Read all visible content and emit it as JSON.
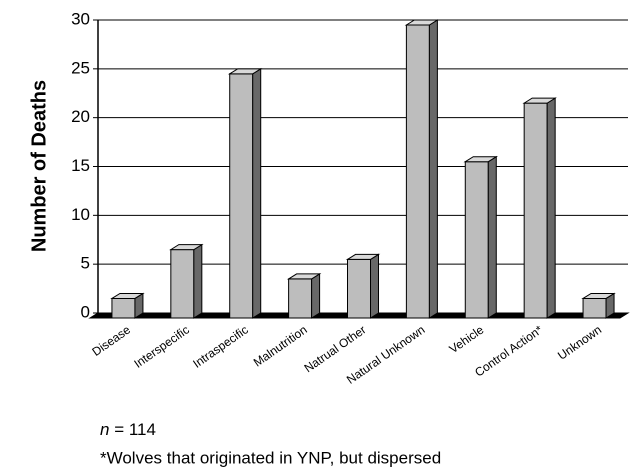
{
  "chart_data": {
    "type": "bar3d",
    "y_label": "Number of Deaths",
    "categories": [
      "Disease",
      "Interspecific",
      "Intraspecific",
      "Malnutrition",
      "Natrual Other",
      "Natural Unknown",
      "Vehicle",
      "Control Action*",
      "Unknown"
    ],
    "values": [
      2,
      7,
      25,
      4,
      6,
      30,
      16,
      22,
      2
    ],
    "color": "#bdbdbd",
    "ylim": [
      0,
      30
    ],
    "yticks": [
      0,
      5,
      10,
      15,
      20,
      25,
      30
    ],
    "grid": true,
    "sample_note": {
      "symbol": "n",
      "text": "= 114"
    },
    "footnote": "*Wolves that originated in YNP, but dispersed"
  }
}
